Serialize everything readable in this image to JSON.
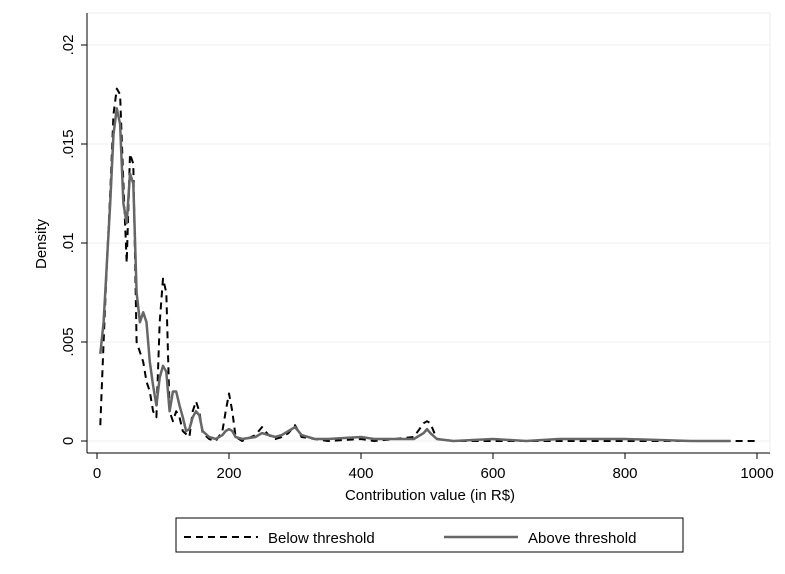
{
  "chart_data": {
    "type": "line",
    "title": "",
    "xlabel": "Contribution value (in R$)",
    "ylabel": "Density",
    "xlim": [
      0,
      1000
    ],
    "ylim": [
      0,
      0.02
    ],
    "xticks": [
      "0",
      "200",
      "400",
      "600",
      "800",
      "1000"
    ],
    "xtick_values": [
      0,
      200,
      400,
      600,
      800,
      1000
    ],
    "yticks": [
      "0",
      ".005",
      ".01",
      ".015",
      ".02"
    ],
    "ytick_values": [
      0,
      0.005,
      0.01,
      0.015,
      0.02
    ],
    "grid": "horizontal",
    "legend_position": "bottom",
    "series": [
      {
        "name": "Below threshold",
        "style": "dashed",
        "color": "#000000",
        "points": [
          [
            5,
            0.0008
          ],
          [
            10,
            0.005
          ],
          [
            15,
            0.009
          ],
          [
            20,
            0.0125
          ],
          [
            25,
            0.0165
          ],
          [
            30,
            0.0178
          ],
          [
            35,
            0.0175
          ],
          [
            40,
            0.013
          ],
          [
            45,
            0.009
          ],
          [
            50,
            0.0145
          ],
          [
            55,
            0.014
          ],
          [
            60,
            0.005
          ],
          [
            65,
            0.0045
          ],
          [
            70,
            0.004
          ],
          [
            75,
            0.003
          ],
          [
            80,
            0.0025
          ],
          [
            85,
            0.0015
          ],
          [
            90,
            0.0012
          ],
          [
            95,
            0.006
          ],
          [
            100,
            0.0082
          ],
          [
            105,
            0.0075
          ],
          [
            110,
            0.0015
          ],
          [
            115,
            0.001
          ],
          [
            120,
            0.0015
          ],
          [
            125,
            0.0012
          ],
          [
            130,
            0.0005
          ],
          [
            140,
            0.0002
          ],
          [
            145,
            0.0015
          ],
          [
            150,
            0.002
          ],
          [
            155,
            0.0015
          ],
          [
            160,
            0.0004
          ],
          [
            170,
            0.0001
          ],
          [
            180,
            0.0
          ],
          [
            190,
            0.0005
          ],
          [
            195,
            0.0015
          ],
          [
            200,
            0.0024
          ],
          [
            205,
            0.0015
          ],
          [
            210,
            0.0002
          ],
          [
            220,
            0.0
          ],
          [
            240,
            0.0003
          ],
          [
            250,
            0.0007
          ],
          [
            260,
            0.0003
          ],
          [
            270,
            0.0001
          ],
          [
            280,
            0.0002
          ],
          [
            290,
            0.0004
          ],
          [
            300,
            0.0008
          ],
          [
            310,
            0.0002
          ],
          [
            330,
            0.0001
          ],
          [
            350,
            0.0
          ],
          [
            400,
            0.0001
          ],
          [
            420,
            0.0
          ],
          [
            480,
            0.0002
          ],
          [
            495,
            0.0009
          ],
          [
            500,
            0.001
          ],
          [
            505,
            0.0009
          ],
          [
            515,
            0.0001
          ],
          [
            540,
            0.0
          ],
          [
            600,
            0.0
          ],
          [
            700,
            0.0
          ],
          [
            800,
            0.0
          ],
          [
            900,
            0.0
          ],
          [
            1000,
            0.0
          ]
        ]
      },
      {
        "name": "Above threshold",
        "style": "solid",
        "color": "#666666",
        "points": [
          [
            5,
            0.0044
          ],
          [
            10,
            0.006
          ],
          [
            15,
            0.009
          ],
          [
            20,
            0.012
          ],
          [
            25,
            0.0155
          ],
          [
            30,
            0.0168
          ],
          [
            35,
            0.016
          ],
          [
            40,
            0.012
          ],
          [
            45,
            0.011
          ],
          [
            50,
            0.0135
          ],
          [
            55,
            0.013
          ],
          [
            60,
            0.0075
          ],
          [
            65,
            0.006
          ],
          [
            70,
            0.0065
          ],
          [
            75,
            0.006
          ],
          [
            80,
            0.004
          ],
          [
            85,
            0.0028
          ],
          [
            90,
            0.0018
          ],
          [
            95,
            0.0032
          ],
          [
            100,
            0.0038
          ],
          [
            105,
            0.0035
          ],
          [
            110,
            0.0015
          ],
          [
            115,
            0.0025
          ],
          [
            120,
            0.0025
          ],
          [
            125,
            0.0018
          ],
          [
            130,
            0.0012
          ],
          [
            135,
            0.0005
          ],
          [
            140,
            0.0006
          ],
          [
            145,
            0.0012
          ],
          [
            150,
            0.0015
          ],
          [
            155,
            0.0013
          ],
          [
            160,
            0.0005
          ],
          [
            170,
            0.0002
          ],
          [
            180,
            0.0001
          ],
          [
            190,
            0.0003
          ],
          [
            195,
            0.0005
          ],
          [
            200,
            0.0006
          ],
          [
            205,
            0.0005
          ],
          [
            210,
            0.0002
          ],
          [
            220,
            0.0001
          ],
          [
            240,
            0.0002
          ],
          [
            250,
            0.0004
          ],
          [
            260,
            0.0003
          ],
          [
            270,
            0.0002
          ],
          [
            280,
            0.0003
          ],
          [
            290,
            0.0005
          ],
          [
            300,
            0.0007
          ],
          [
            310,
            0.0003
          ],
          [
            330,
            0.0001
          ],
          [
            350,
            0.0001
          ],
          [
            400,
            0.0002
          ],
          [
            420,
            0.0001
          ],
          [
            480,
            0.0001
          ],
          [
            495,
            0.0004
          ],
          [
            500,
            0.0006
          ],
          [
            505,
            0.0004
          ],
          [
            515,
            0.0001
          ],
          [
            540,
            0.0
          ],
          [
            600,
            0.0001
          ],
          [
            650,
            0.0
          ],
          [
            700,
            0.0001
          ],
          [
            750,
            0.0001
          ],
          [
            800,
            0.0001
          ],
          [
            900,
            0.0
          ],
          [
            960,
            0.0
          ]
        ]
      }
    ]
  }
}
